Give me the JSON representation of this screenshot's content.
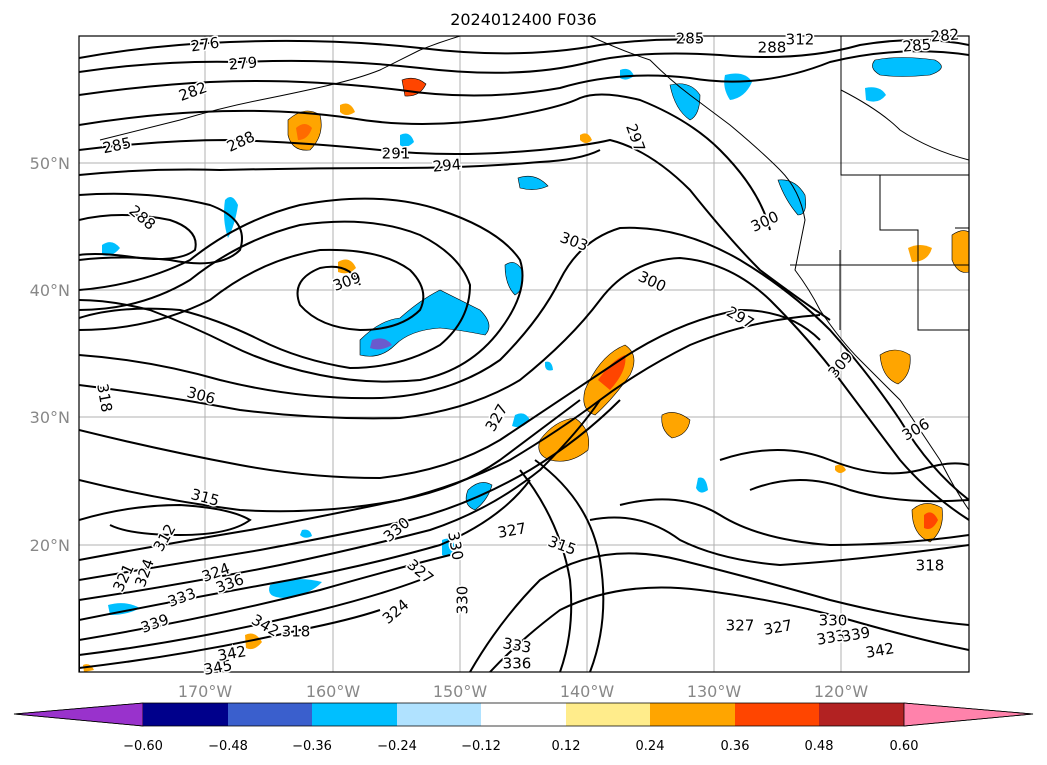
{
  "title": "2024012400 F036",
  "lat_labels": [
    "50°N",
    "40°N",
    "30°N",
    "20°N"
  ],
  "lon_labels": [
    "170°W",
    "160°W",
    "150°W",
    "140°W",
    "130°W",
    "120°W"
  ],
  "contour_labels": [
    "276",
    "279",
    "282",
    "285",
    "288",
    "291",
    "294",
    "297",
    "300",
    "303",
    "306",
    "309",
    "312",
    "315",
    "318",
    "321",
    "324",
    "327",
    "330",
    "333",
    "336",
    "339",
    "342",
    "345"
  ],
  "colorbar": {
    "ticks": [
      "−0.60",
      "−0.48",
      "−0.36",
      "−0.24",
      "−0.12",
      "0.12",
      "0.24",
      "0.36",
      "0.48",
      "0.60"
    ],
    "colors": [
      "#9932cc",
      "#00008b",
      "#3a5fcd",
      "#00bfff",
      "#b0e2ff",
      "#ffffff",
      "#ffec8b",
      "#ffa500",
      "#ff4500",
      "#b22222",
      "#ff82ab"
    ]
  }
}
